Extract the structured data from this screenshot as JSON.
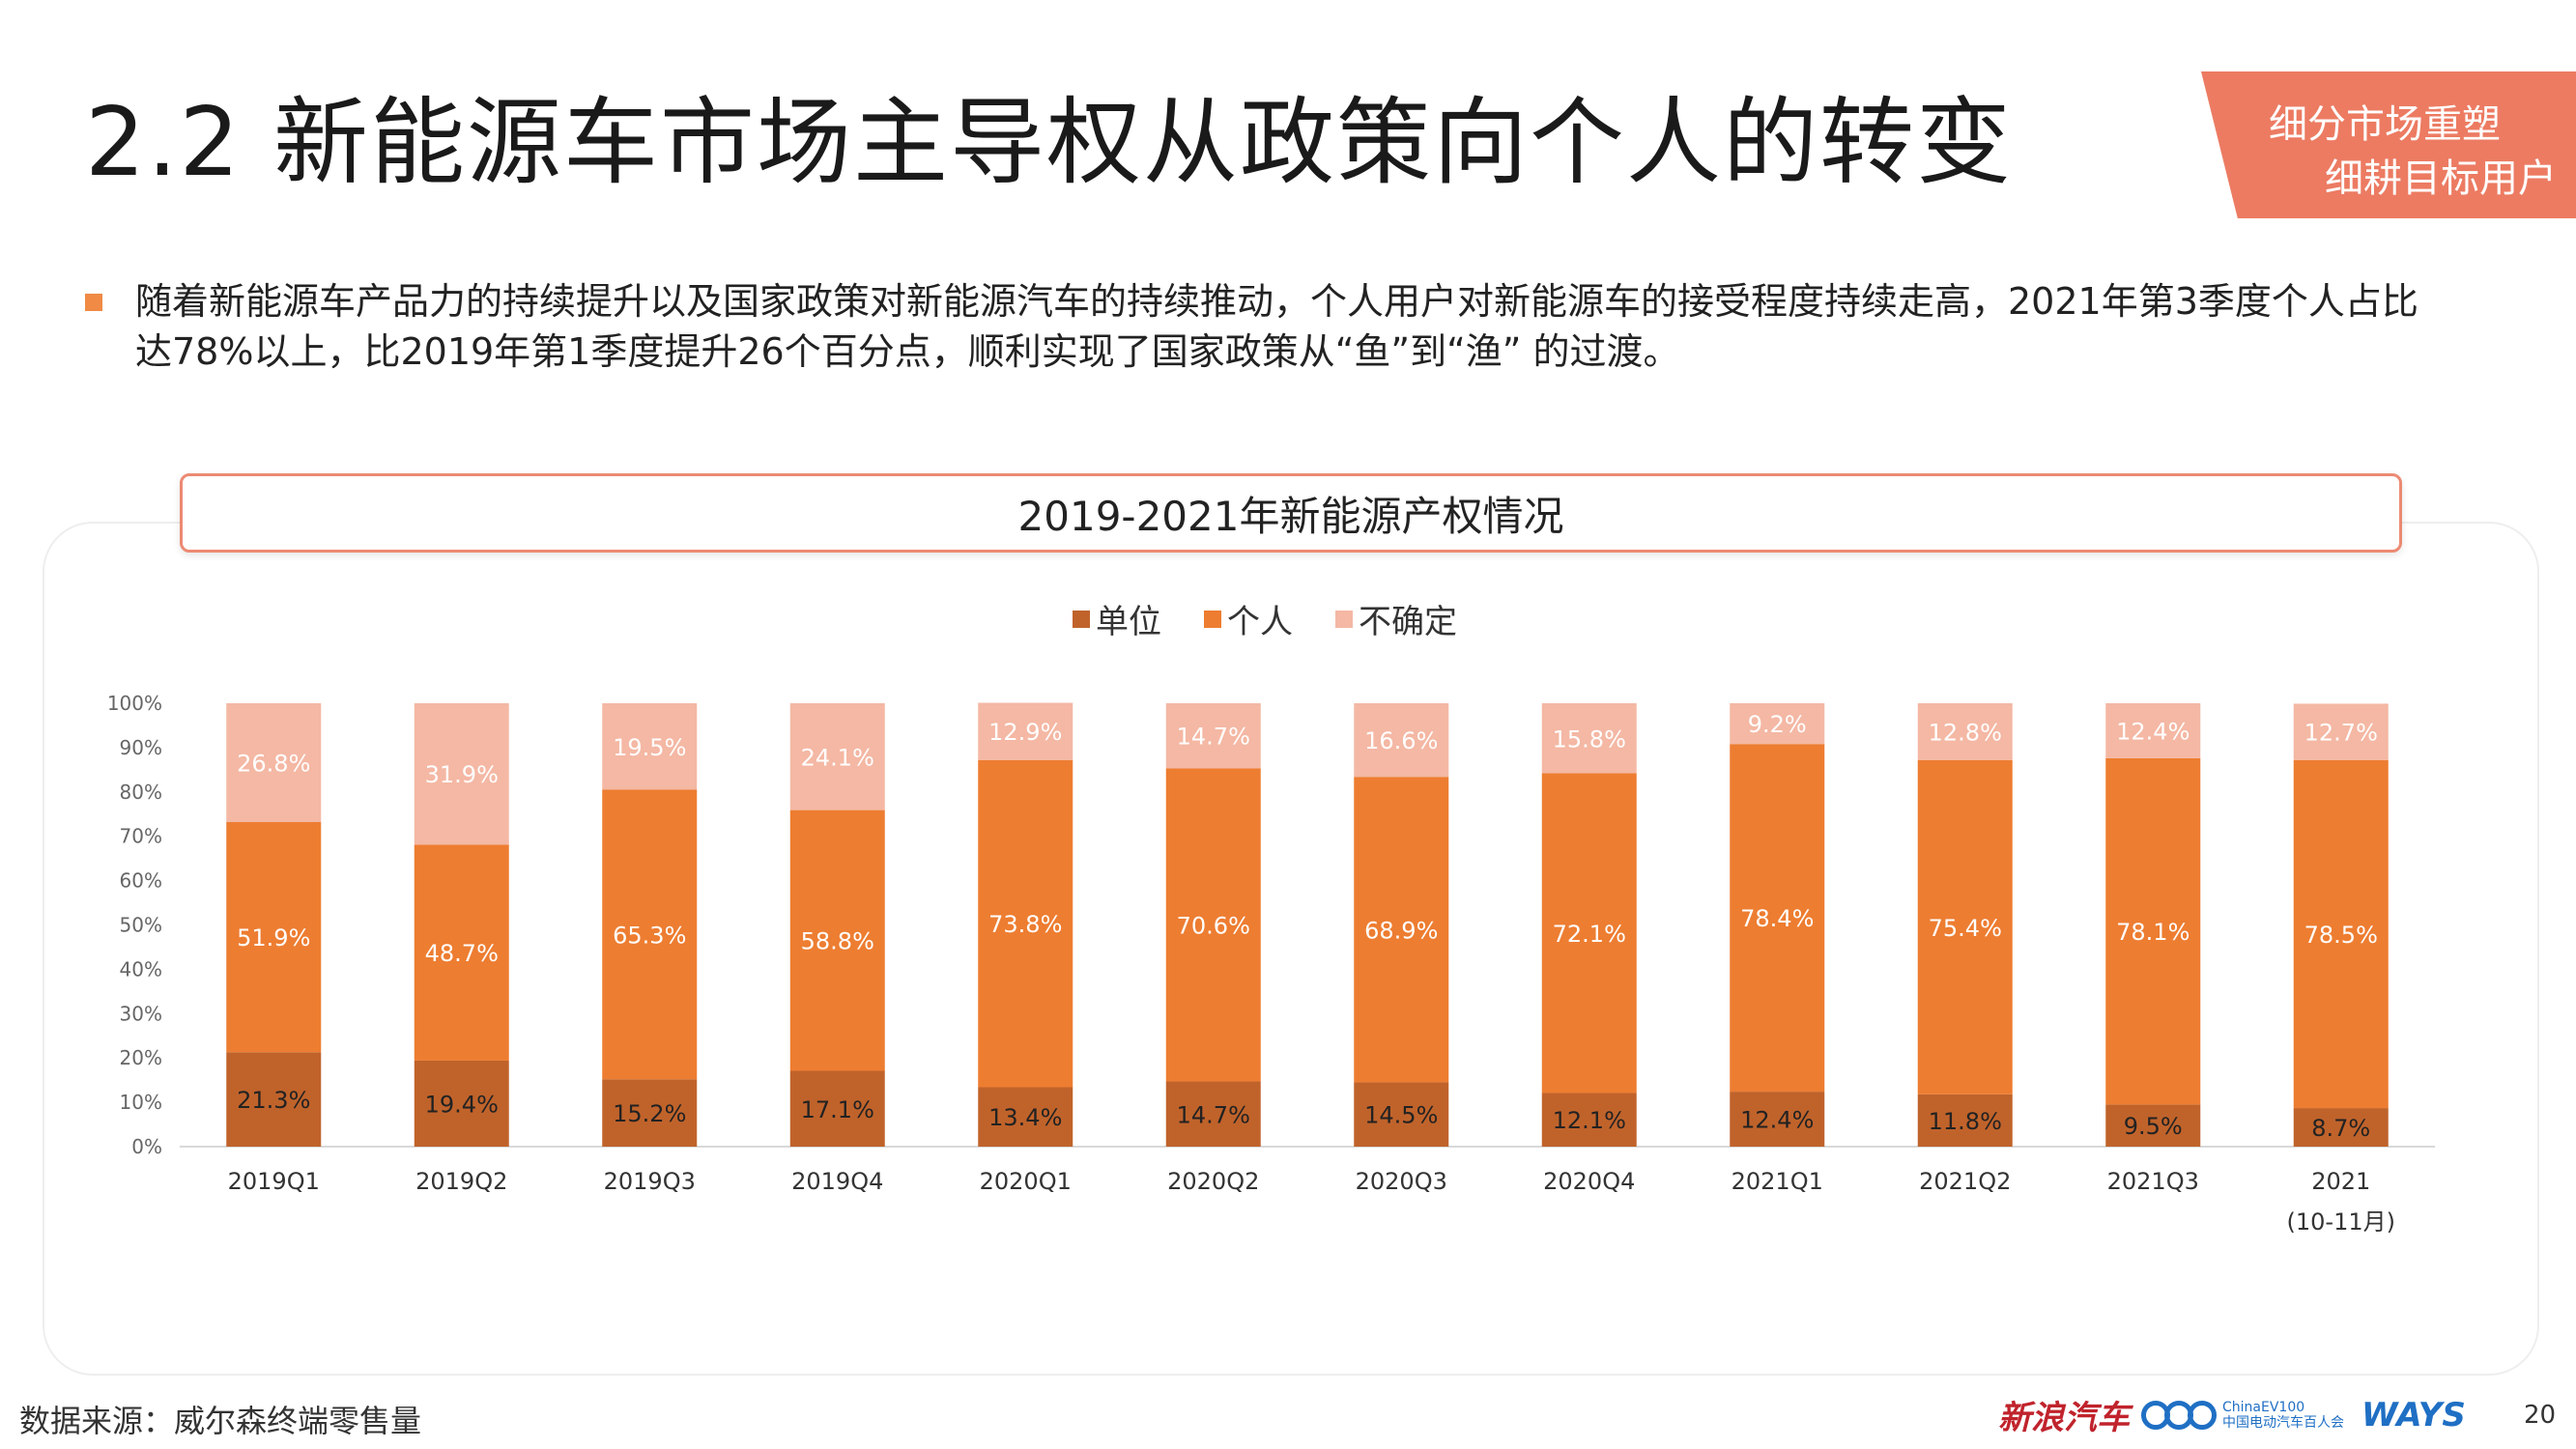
{
  "title": "2.2 新能源车市场主导权从政策向个人的转变",
  "corner_tag": {
    "line1": "细分市场重塑",
    "line2": "细耕目标用户"
  },
  "body_text": "随着新能源车产品力的持续提升以及国家政策对新能源汽车的持续推动，个人用户对新能源车的接受程度持续走高，2021年第3季度个人占比达78%以上，比2019年第1季度提升26个百分点，顺利实现了国家政策从“鱼”到“渔” 的过渡。",
  "source": "数据来源：威尔森终端零售量",
  "logos": {
    "sina": "新浪汽车",
    "ev_name": "ChinaEV100",
    "ev_sub": "中国电动汽车百人会",
    "ways": "WAYS"
  },
  "page_number": "20",
  "colors": {
    "unit": "#c0632b",
    "personal": "#ed7d31",
    "uncertain": "#f4b8a4",
    "accent": "#ec7b62"
  },
  "chart_data": {
    "type": "bar",
    "stacked": true,
    "title": "2019-2021年新能源产权情况",
    "categories": [
      "2019Q1",
      "2019Q2",
      "2019Q3",
      "2019Q4",
      "2020Q1",
      "2020Q2",
      "2020Q3",
      "2020Q4",
      "2021Q1",
      "2021Q2",
      "2021Q3",
      "2021\n(10-11月)"
    ],
    "series": [
      {
        "name": "单位",
        "values": [
          21.3,
          19.4,
          15.2,
          17.1,
          13.4,
          14.7,
          14.5,
          12.1,
          12.4,
          11.8,
          9.5,
          8.7
        ]
      },
      {
        "name": "个人",
        "values": [
          51.9,
          48.7,
          65.3,
          58.8,
          73.8,
          70.6,
          68.9,
          72.1,
          78.4,
          75.4,
          78.1,
          78.5
        ]
      },
      {
        "name": "不确定",
        "values": [
          26.8,
          31.9,
          19.5,
          24.1,
          12.9,
          14.7,
          16.6,
          15.8,
          9.2,
          12.8,
          12.4,
          12.7
        ]
      }
    ],
    "y_ticks": [
      "0%",
      "10%",
      "20%",
      "30%",
      "40%",
      "50%",
      "60%",
      "70%",
      "80%",
      "90%",
      "100%"
    ],
    "ylim": [
      0,
      100
    ],
    "legend_position": "top-center",
    "grid": false
  }
}
